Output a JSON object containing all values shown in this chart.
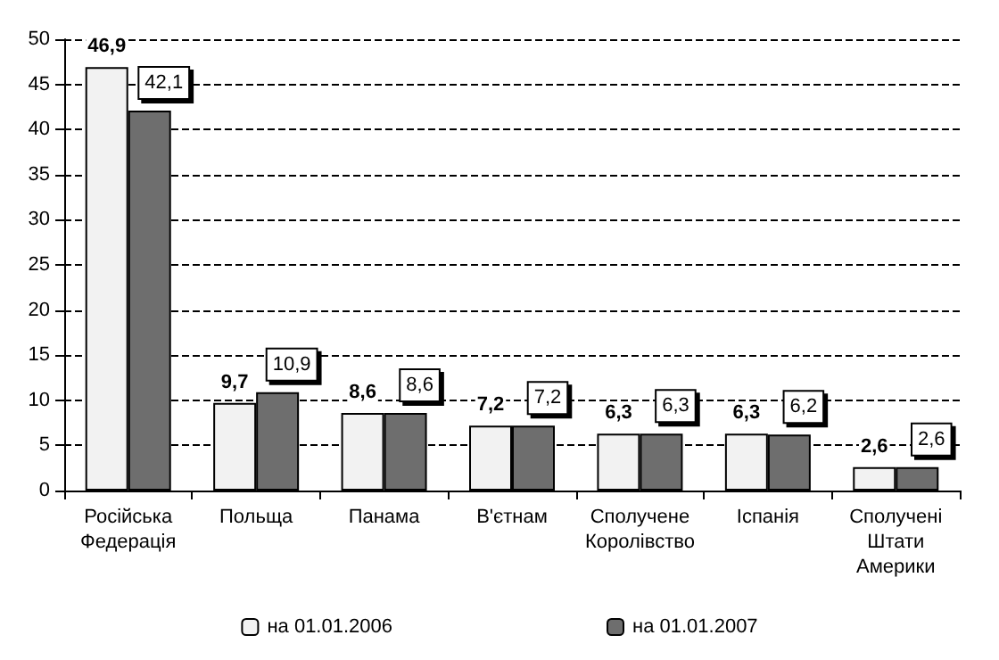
{
  "chart_data": {
    "type": "bar",
    "categories": [
      "Російська Федерація",
      "Польща",
      "Панама",
      "В'єтнам",
      "Сполучене Королівство",
      "Іспанія",
      "Сполучені Штати Америки"
    ],
    "series": [
      {
        "name": "на 01.01.2006",
        "color": "#f2f2f2",
        "values": [
          46.9,
          9.7,
          8.6,
          7.2,
          6.3,
          6.3,
          2.6
        ],
        "value_labels": [
          "46,9",
          "9,7",
          "8,6",
          "7,2",
          "6,3",
          "6,3",
          "2,6"
        ]
      },
      {
        "name": "на 01.01.2007",
        "color": "#6e6e6e",
        "values": [
          42.1,
          10.9,
          8.6,
          7.2,
          6.3,
          6.2,
          2.6
        ],
        "value_labels": [
          "42,1",
          "10,9",
          "8,6",
          "7,2",
          "6,3",
          "6,2",
          "2,6"
        ]
      }
    ],
    "ylim": [
      0,
      50
    ],
    "yticks": [
      0,
      5,
      10,
      15,
      20,
      25,
      30,
      35,
      40,
      45,
      50
    ],
    "grid": "y",
    "legend": "bottom"
  }
}
